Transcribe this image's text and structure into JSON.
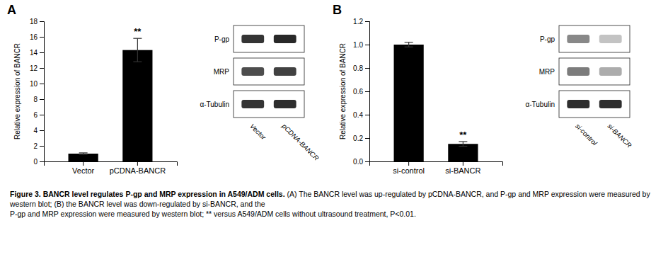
{
  "chart_data": [
    {
      "type": "bar",
      "panel_label": "A",
      "categories": [
        "Vector",
        "pCDNA-BANCR"
      ],
      "values": [
        1.0,
        14.3
      ],
      "errors": [
        0.1,
        1.5
      ],
      "color": "#000000",
      "ylabel": "Relative expression of BANCR",
      "ylim": [
        0,
        18
      ],
      "yticks": [
        0,
        2,
        4,
        6,
        8,
        10,
        12,
        14,
        16,
        18
      ],
      "annotations": [
        {
          "text": "**",
          "category": "pCDNA-BANCR"
        }
      ],
      "western_blot": {
        "rows": [
          "P-gp",
          "MRP",
          "α-Tubulin"
        ],
        "lanes": [
          "Vector",
          "pCDNA-BANCR"
        ],
        "intensities": [
          [
            0.85,
            0.9
          ],
          [
            0.75,
            0.8
          ],
          [
            0.85,
            0.88
          ]
        ]
      }
    },
    {
      "type": "bar",
      "panel_label": "B",
      "categories": [
        "si-control",
        "si-BANCR"
      ],
      "values": [
        1.0,
        0.15
      ],
      "errors": [
        0.02,
        0.02
      ],
      "color": "#000000",
      "ylabel": "Relative expression of BANCR",
      "ylim": [
        0,
        1.2
      ],
      "yticks": [
        {
          "value": 0,
          "label": "0.0"
        },
        0.2,
        0.4,
        0.6,
        0.8,
        {
          "value": 1.0,
          "label": "1.0"
        },
        1.2
      ],
      "annotations": [
        {
          "text": "**",
          "category": "si-BANCR"
        }
      ],
      "western_blot": {
        "rows": [
          "P-gp",
          "MRP",
          "α-Tubulin"
        ],
        "lanes": [
          "si-control",
          "si-BANCR"
        ],
        "intensities": [
          [
            0.5,
            0.25
          ],
          [
            0.55,
            0.35
          ],
          [
            0.88,
            0.88
          ]
        ]
      }
    }
  ],
  "caption": {
    "bold": "Figure 3. BANCR level regulates P-gp and MRP expression in A549/ADM cells.",
    "text": [
      " (A) The BANCR level was up-regulated by pCDNA-BANCR, and P-gp and MRP expression were measured by western blot; (B) the BANCR level was down-regulated by si-BANCR, and the",
      "P-gp and MRP expression were measured by western blot; ** versus A549/ADM cells without ultrasound treatment, P<0.01."
    ]
  }
}
